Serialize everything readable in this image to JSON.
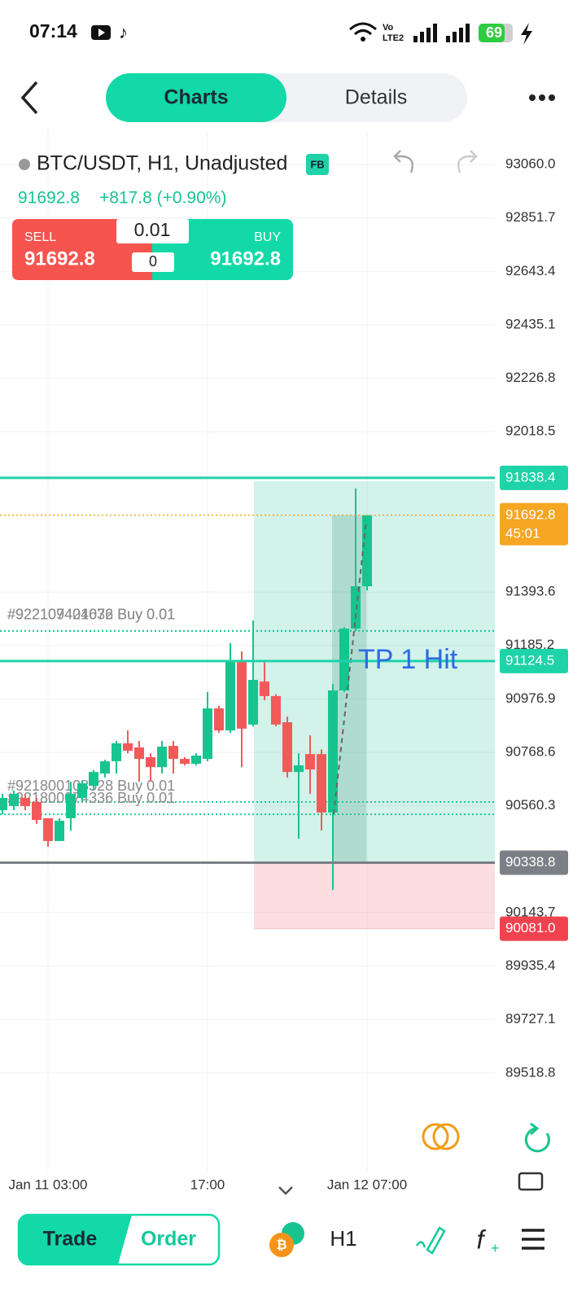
{
  "status_bar": {
    "time": "07:14",
    "battery": "69"
  },
  "nav": {
    "tabs": [
      "Charts",
      "Details"
    ]
  },
  "symbol": {
    "title": "BTC/USDT, H1, Unadjusted",
    "badge": "FB",
    "price": "91692.8",
    "change": "+817.8 (+0.90%)"
  },
  "trade_widget": {
    "sell_label": "SELL",
    "sell_price": "91692.8",
    "lot": "0.01",
    "spread": "0",
    "buy_label": "BUY",
    "buy_price": "91692.8"
  },
  "chart": {
    "type": "candlestick",
    "ylim": [
      89131.1,
      93193.3
    ],
    "yticks": [
      {
        "value": 93060,
        "label": "93060.0"
      },
      92851.7,
      92643.4,
      92435.1,
      92226.8,
      92018.5,
      91393.6,
      91185.2,
      90976.9,
      90768.6,
      90560.3,
      90143.7,
      89935.4,
      89727.1,
      89518.8
    ],
    "categories": [
      null,
      null,
      null,
      null,
      "Jan 11 03:00",
      null,
      null,
      null,
      null,
      null,
      null,
      null,
      null,
      null,
      null,
      null,
      null,
      null,
      "17:00",
      null,
      null,
      null,
      null,
      null,
      null,
      null,
      null,
      null,
      null,
      null,
      null,
      null,
      "Jan 12 07:00"
    ],
    "candles": {
      "open": [
        90543,
        90559,
        90591,
        90575,
        90512,
        90423,
        90512,
        90591,
        90638,
        90686,
        90734,
        90804,
        90788,
        90750,
        90711,
        90794,
        90743,
        90724,
        90743,
        90940,
        90854,
        91124,
        90877,
        91045,
        90988,
        90886,
        90692,
        90762,
        90762,
        90534,
        91010,
        91251,
        91416
      ],
      "high": [
        90607,
        90620,
        90607,
        90591,
        90512,
        90512,
        90654,
        90660,
        90700,
        90740,
        90813,
        90854,
        90813,
        90765,
        90813,
        90813,
        90750,
        90765,
        91004,
        90950,
        91194,
        91162,
        91283,
        91124,
        90995,
        90908,
        90765,
        90835,
        90780,
        91035,
        91257,
        91797,
        91692.8
      ],
      "low": [
        90527,
        90543,
        90543,
        90490,
        90400,
        90423,
        90464,
        90575,
        90620,
        90670,
        90686,
        90765,
        90654,
        90654,
        90686,
        90686,
        90718,
        90718,
        90734,
        90845,
        90845,
        90711,
        90870,
        90972,
        90870,
        90670,
        90432,
        90607,
        90464,
        90232,
        91004,
        91242,
        91400
      ],
      "close": [
        90591,
        90607,
        90559,
        90505,
        90423,
        90502,
        90607,
        90648,
        90692,
        90734,
        90804,
        90775,
        90743,
        90711,
        90791,
        90743,
        90724,
        90756,
        90940,
        90854,
        91124,
        90861,
        91051,
        90988,
        90877,
        90692,
        90718,
        90702,
        90534,
        91010,
        91251,
        91416,
        91692.8
      ]
    },
    "price_tags": [
      {
        "value": 91838.4,
        "color": "#1ed3a8"
      },
      {
        "value": 91692.8,
        "color": "#f5a623",
        "countdown": "45:01"
      },
      {
        "value": 91124.5,
        "color": "#1ed3a8"
      },
      {
        "value": 90338.8,
        "color": "#7c7f86"
      },
      {
        "value": {
          "value": 90081,
          "label": "90081.0"
        },
        "color": "#f0434f"
      }
    ],
    "orders": [
      {
        "label": "#922109404672 Buy 0.01",
        "price": 91242
      },
      {
        "label": "#922107421036 Buy 0.01",
        "price": 91242
      },
      {
        "label": "#921800108528 Buy 0.01",
        "price": 90575
      },
      {
        "label": "#921800074336 Buy 0.01",
        "price": 90527
      }
    ],
    "annotation": "TP 1 Hit",
    "up_color": "#17c48f",
    "down_color": "#f25a5a"
  },
  "toolbar": {
    "trade": "Trade",
    "order": "Order",
    "timeframe": "H1"
  }
}
